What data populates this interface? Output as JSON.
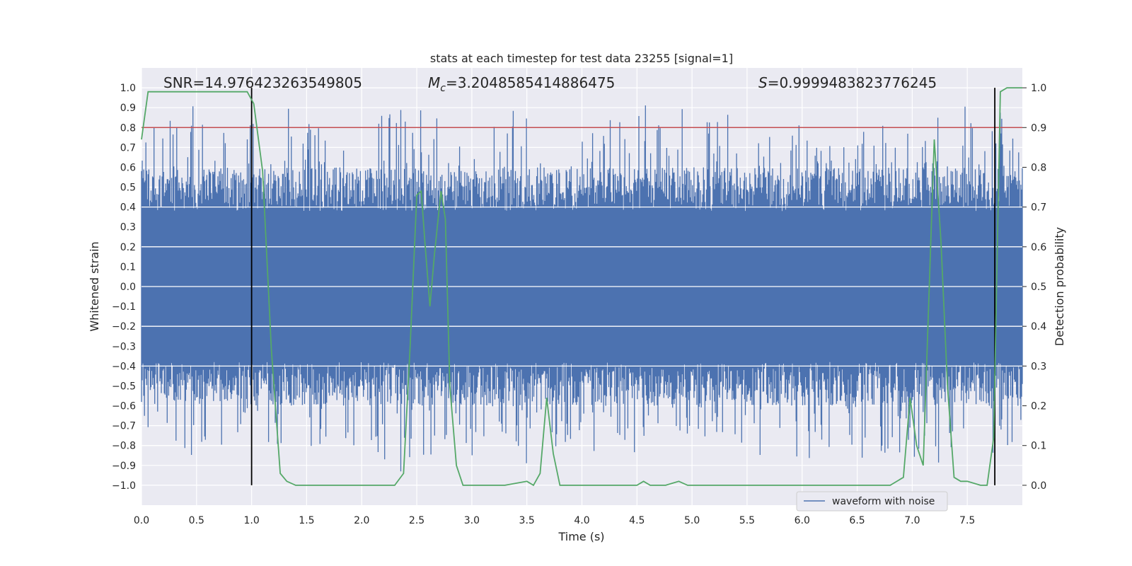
{
  "chart_data": {
    "type": "line",
    "title": "stats at each timestep for test data 23255 [signal=1]",
    "xlabel": "Time (s)",
    "ylabel_left": "Whitened strain",
    "ylabel_right": "Detection probability",
    "xlim": [
      0,
      8
    ],
    "ylim_left": [
      -1.1,
      1.1
    ],
    "ylim_right": [
      -0.05,
      1.05
    ],
    "xticks": [
      "0.0",
      "0.5",
      "1.0",
      "1.5",
      "2.0",
      "2.5",
      "3.0",
      "3.5",
      "4.0",
      "4.5",
      "5.0",
      "5.5",
      "6.0",
      "6.5",
      "7.0",
      "7.5"
    ],
    "yticks_left": [
      "1.0",
      "0.9",
      "0.8",
      "0.7",
      "0.6",
      "0.5",
      "0.4",
      "0.3",
      "0.2",
      "0.1",
      "0.0",
      "−0.1",
      "−0.2",
      "−0.3",
      "−0.4",
      "−0.5",
      "−0.6",
      "−0.7",
      "−0.8",
      "−0.9",
      "−1.0"
    ],
    "yticks_right": [
      "1.0",
      "0.9",
      "0.8",
      "0.7",
      "0.6",
      "0.5",
      "0.4",
      "0.3",
      "0.2",
      "0.1",
      "0.0"
    ],
    "grid": true,
    "legend": {
      "position": "bottom-right",
      "entries": [
        "waveform with noise"
      ]
    },
    "annotations": {
      "snr": "SNR=14.976423263549805",
      "mc_symbol": "M",
      "mc_sub": "c",
      "mc_value": "=3.2048585414886475",
      "s_symbol": "S",
      "s_value": "=0.9999483823776245"
    },
    "threshold": {
      "y_right": 0.9,
      "color": "#c44e52"
    },
    "vertical_markers": [
      1.0,
      7.75
    ],
    "series": [
      {
        "name": "waveform with noise",
        "axis": "left",
        "color": "#4c72b0",
        "description_envelope": {
          "core": 0.38,
          "peak": 1.0,
          "duration": 8.0
        }
      },
      {
        "axis": "right",
        "color": "#55a868",
        "x": [
          0.0,
          0.06,
          0.12,
          0.9,
          0.96,
          1.02,
          1.1,
          1.18,
          1.26,
          1.32,
          1.4,
          1.6,
          1.9,
          2.1,
          2.3,
          2.38,
          2.44,
          2.5,
          2.54,
          2.58,
          2.62,
          2.66,
          2.72,
          2.76,
          2.8,
          2.86,
          2.92,
          3.0,
          3.3,
          3.5,
          3.56,
          3.62,
          3.68,
          3.74,
          3.8,
          3.86,
          3.92,
          4.0,
          4.5,
          4.56,
          4.62,
          4.7,
          4.76,
          4.88,
          4.96,
          5.5,
          6.0,
          6.3,
          6.6,
          6.8,
          6.92,
          6.98,
          7.04,
          7.1,
          7.2,
          7.26,
          7.32,
          7.38,
          7.44,
          7.5,
          7.62,
          7.68,
          7.74,
          7.8,
          7.86,
          7.92,
          8.0
        ],
        "y": [
          0.87,
          0.99,
          0.99,
          0.99,
          0.99,
          0.96,
          0.79,
          0.34,
          0.03,
          0.01,
          0.0,
          0.0,
          0.0,
          0.0,
          0.0,
          0.03,
          0.35,
          0.73,
          0.74,
          0.59,
          0.45,
          0.58,
          0.74,
          0.67,
          0.25,
          0.05,
          0.0,
          0.0,
          0.0,
          0.01,
          0.0,
          0.03,
          0.22,
          0.08,
          0.0,
          0.0,
          0.0,
          0.0,
          0.0,
          0.01,
          0.0,
          0.0,
          0.0,
          0.01,
          0.0,
          0.0,
          0.0,
          0.0,
          0.0,
          0.0,
          0.02,
          0.22,
          0.1,
          0.05,
          0.87,
          0.62,
          0.25,
          0.02,
          0.01,
          0.01,
          0.0,
          0.0,
          0.12,
          0.99,
          1.0,
          1.0,
          1.0
        ]
      }
    ]
  }
}
